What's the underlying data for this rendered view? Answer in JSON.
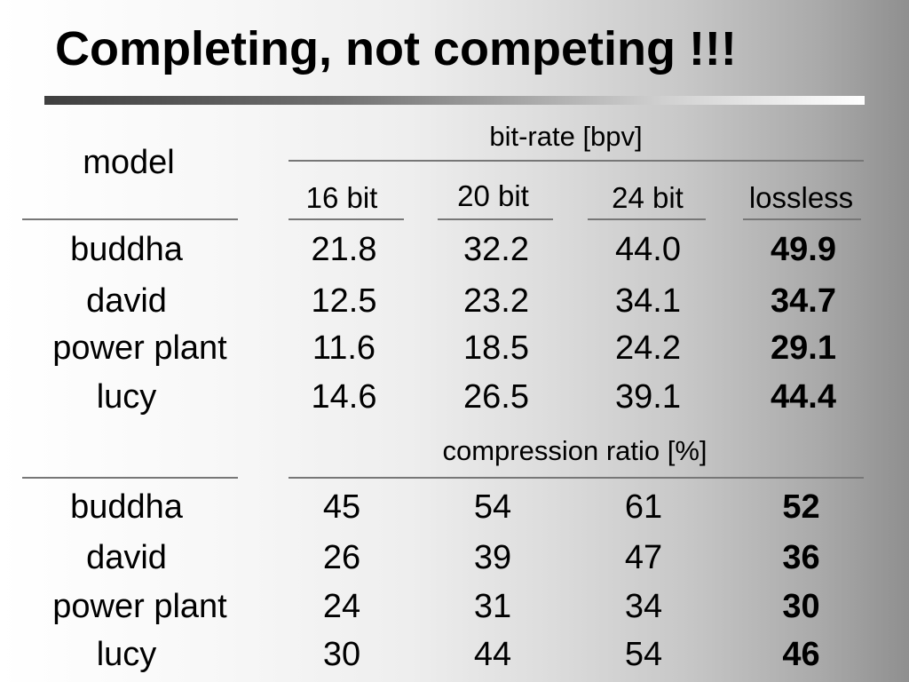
{
  "slide": {
    "title": "Completing, not competing !!!"
  },
  "table": {
    "model_label": "model",
    "bit_rate_label": "bit-rate [bpv]",
    "compression_label": "compression ratio [%]",
    "columns": [
      "16 bit",
      "20 bit",
      "24 bit",
      "lossless"
    ],
    "bit_rate_rows": [
      {
        "model": "buddha",
        "values": [
          "21.8",
          "32.2",
          "44.0",
          "49.9"
        ]
      },
      {
        "model": "david",
        "values": [
          "12.5",
          "23.2",
          "34.1",
          "34.7"
        ]
      },
      {
        "model": "power plant",
        "values": [
          "11.6",
          "18.5",
          "24.2",
          "29.1"
        ]
      },
      {
        "model": "lucy",
        "values": [
          "14.6",
          "26.5",
          "39.1",
          "44.4"
        ]
      }
    ],
    "compression_rows": [
      {
        "model": "buddha",
        "values": [
          "45",
          "54",
          "61",
          "52"
        ]
      },
      {
        "model": "david",
        "values": [
          "26",
          "39",
          "47",
          "36"
        ]
      },
      {
        "model": "power plant",
        "values": [
          "24",
          "31",
          "34",
          "30"
        ]
      },
      {
        "model": "lucy",
        "values": [
          "30",
          "44",
          "54",
          "46"
        ]
      }
    ]
  }
}
